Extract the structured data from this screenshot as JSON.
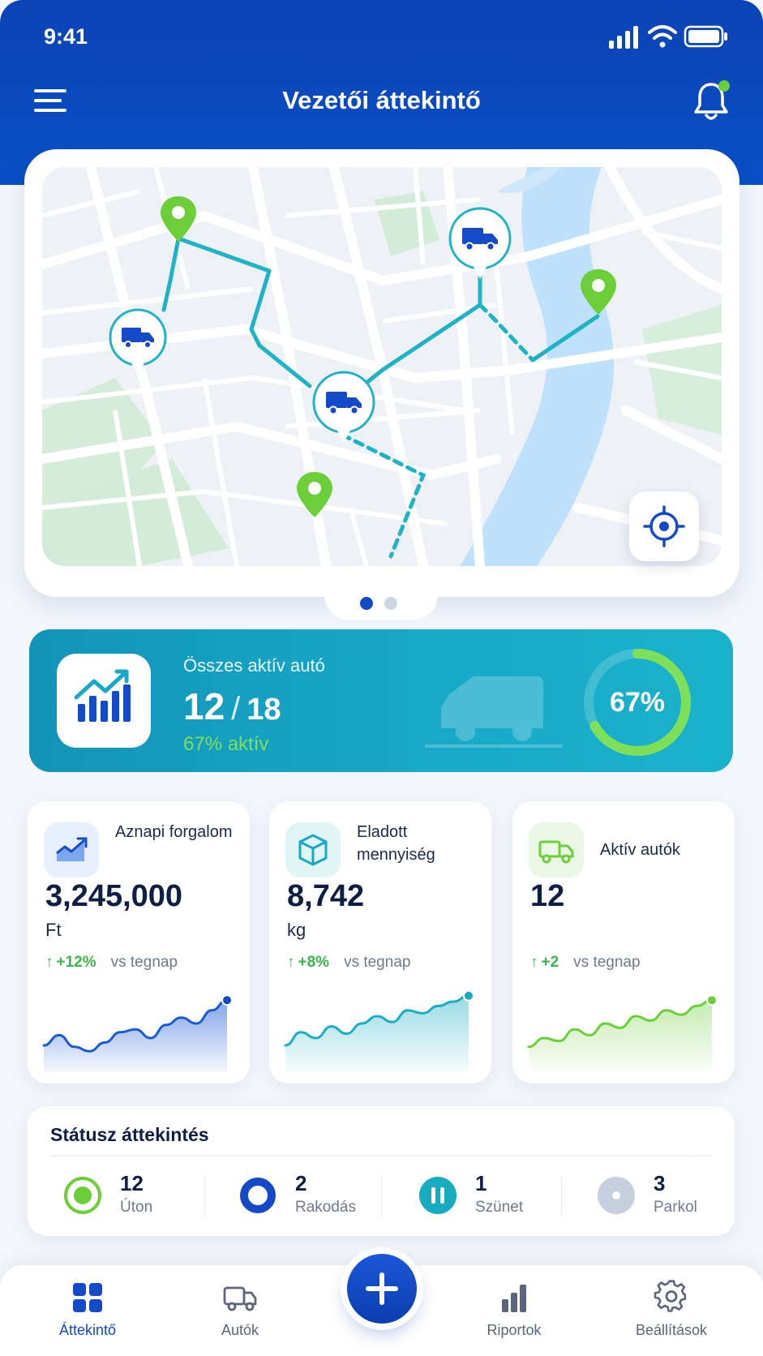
{
  "status_bar": {
    "time": "9:41"
  },
  "header": {
    "title": "Vezetői áttekintő"
  },
  "map": {
    "page_dots": 2,
    "active_dot": 1
  },
  "active_cars": {
    "label": "Összes aktív autó",
    "active": "12",
    "separator": "/",
    "total": "18",
    "subtitle": "67% aktív",
    "percent_label": "67%",
    "percent_value": 67
  },
  "stats": [
    {
      "label": "Aznapi forgalom",
      "value": "3,245,000",
      "unit": "Ft",
      "delta": "+12%",
      "vs": "vs tegnap",
      "icon": "chart-icon",
      "trend": [
        30,
        44,
        28,
        22,
        34,
        48,
        52,
        40,
        58,
        68,
        60,
        78,
        92
      ]
    },
    {
      "label": "Eladott mennyiség",
      "value": "8,742",
      "unit": "kg",
      "delta": "+8%",
      "vs": "vs tegnap",
      "icon": "box-icon",
      "trend": [
        30,
        48,
        40,
        56,
        46,
        60,
        70,
        62,
        78,
        74,
        84,
        90,
        98
      ]
    },
    {
      "label": "Aktív autók",
      "value": "12",
      "unit": "",
      "delta": "+2",
      "vs": "vs tegnap",
      "icon": "truck-icon",
      "trend": [
        28,
        40,
        36,
        52,
        44,
        60,
        54,
        70,
        64,
        78,
        72,
        84,
        92
      ]
    }
  ],
  "status_overview": {
    "title": "Státusz áttekintés",
    "items": [
      {
        "count": "12",
        "label": "Úton",
        "color": "#6ccf3a"
      },
      {
        "count": "2",
        "label": "Rakodás",
        "color": "#1449c7"
      },
      {
        "count": "1",
        "label": "Szünet",
        "color": "#18aabf"
      },
      {
        "count": "3",
        "label": "Parkol",
        "color": "#c5cfdd"
      }
    ]
  },
  "nav": {
    "items": [
      {
        "label": "Áttekintő",
        "icon": "grid-icon",
        "active": true
      },
      {
        "label": "Autók",
        "icon": "truck-icon",
        "active": false
      },
      {
        "label": "Riportok",
        "icon": "bar-chart-icon",
        "active": false
      },
      {
        "label": "Beállítások",
        "icon": "gear-icon",
        "active": false
      }
    ],
    "fab_icon": "plus-icon"
  },
  "colors": {
    "primary": "#0b43b5",
    "accent_green": "#6ccf3a",
    "teal": "#18a8c8",
    "route": "#1fb3c6",
    "water": "#bfe1fb",
    "park": "#d2ecd8"
  }
}
